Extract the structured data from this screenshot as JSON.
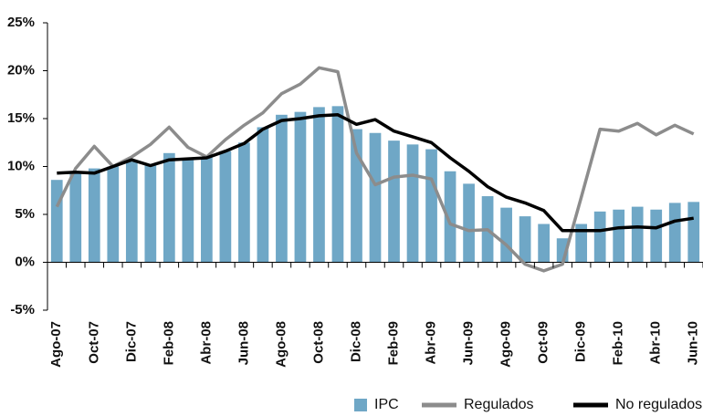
{
  "chart_data": {
    "type": "bar",
    "categories": [
      "Ago-07",
      null,
      "Oct-07",
      null,
      "Dic-07",
      null,
      "Feb-08",
      null,
      "Abr-08",
      null,
      "Jun-08",
      null,
      "Ago-08",
      null,
      "Oct-08",
      null,
      "Dic-08",
      null,
      "Feb-09",
      null,
      "Abr-09",
      null,
      "Jun-09",
      null,
      "Ago-09",
      null,
      "Oct-09",
      null,
      "Dic-09",
      null,
      "Feb-10",
      null,
      "Abr-10",
      null,
      "Jun-10"
    ],
    "series": [
      {
        "name": "IPC",
        "type": "bar",
        "color": "#6fa7c6",
        "values": [
          8.6,
          9.3,
          9.8,
          10.0,
          10.5,
          10.2,
          11.4,
          10.8,
          11.0,
          11.6,
          12.5,
          14.1,
          15.4,
          15.7,
          16.2,
          16.3,
          13.9,
          13.5,
          12.7,
          12.3,
          11.8,
          9.5,
          8.2,
          6.9,
          5.7,
          4.8,
          4.0,
          2.5,
          4.0,
          5.3,
          5.5,
          5.8,
          5.5,
          6.2,
          6.3
        ]
      },
      {
        "name": "Regulados",
        "type": "line",
        "color": "#8c8c8c",
        "values": [
          5.8,
          9.8,
          12.1,
          10.0,
          11.0,
          12.3,
          14.1,
          12.0,
          11.0,
          12.8,
          14.3,
          15.6,
          17.6,
          18.6,
          20.3,
          19.9,
          11.4,
          8.1,
          8.9,
          9.1,
          8.7,
          4.0,
          3.3,
          3.4,
          1.8,
          -0.2,
          -0.9,
          -0.2,
          6.8,
          13.9,
          13.7,
          14.5,
          13.3,
          14.3,
          13.4
        ]
      },
      {
        "name": "No regulados",
        "type": "line",
        "color": "#000000",
        "values": [
          9.3,
          9.4,
          9.3,
          10.0,
          10.7,
          10.1,
          10.7,
          10.8,
          10.9,
          11.6,
          12.4,
          13.9,
          14.8,
          15.0,
          15.3,
          15.4,
          14.4,
          14.9,
          13.7,
          13.1,
          12.5,
          10.9,
          9.5,
          7.9,
          6.8,
          6.2,
          5.4,
          3.3,
          3.3,
          3.3,
          3.6,
          3.7,
          3.6,
          4.3,
          4.6
        ]
      }
    ],
    "ylim": [
      -5,
      25
    ],
    "yticks": [
      {
        "value": -5,
        "label": "-5%"
      },
      {
        "value": 0,
        "label": "0%"
      },
      {
        "value": 5,
        "label": "5%"
      },
      {
        "value": 10,
        "label": "10%"
      },
      {
        "value": 15,
        "label": "15%"
      },
      {
        "value": 20,
        "label": "20%"
      },
      {
        "value": 25,
        "label": "25%"
      }
    ],
    "grid": false,
    "legend": "bottom-right"
  }
}
